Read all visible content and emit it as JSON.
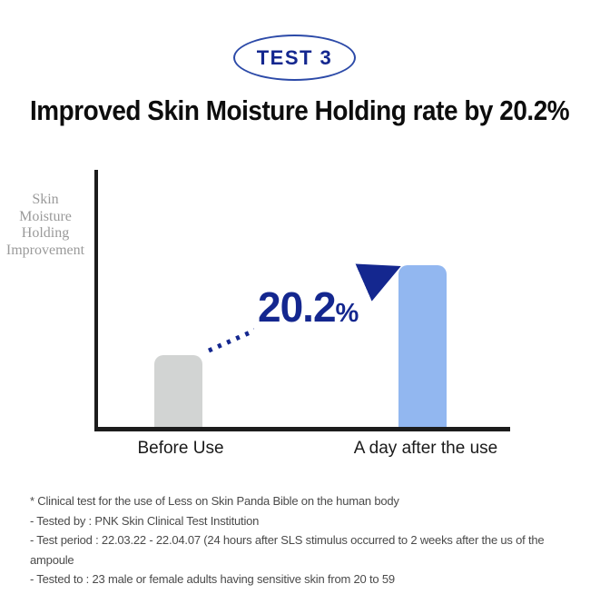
{
  "badge": {
    "label": "TEST 3"
  },
  "title": "Improved Skin Moisture Holding rate by 20.2%",
  "chart_data": {
    "type": "bar",
    "title": "Improved Skin Moisture Holding rate by 20.2%",
    "ylabel": "Skin\nMoisture\nHolding\nImprovement",
    "xlabel": "",
    "categories": [
      "Before Use",
      "A day after the use"
    ],
    "values": [
      28,
      63
    ],
    "values_note": "percent of plot height; no numeric axis shown in figure",
    "colors": [
      "#d2d4d3",
      "#92b7f0"
    ],
    "annotation": "20.2%",
    "annotation_value": "20.2",
    "annotation_unit": "%",
    "increase_pct": 20.2,
    "grid": false,
    "legend": false,
    "axis_color": "#1c1c1c",
    "accent_color": "#14278f"
  },
  "footnotes": [
    "* Clinical test for the use of Less on Skin Panda Bible on the human body",
    "- Tested by : PNK Skin Clinical Test Institution",
    "- Test period : 22.03.22 - 22.04.07 (24 hours after SLS stimulus occurred to 2 weeks after the us of the ampoule",
    "- Tested to : 23 male or female adults having sensitive skin from 20 to 59"
  ]
}
